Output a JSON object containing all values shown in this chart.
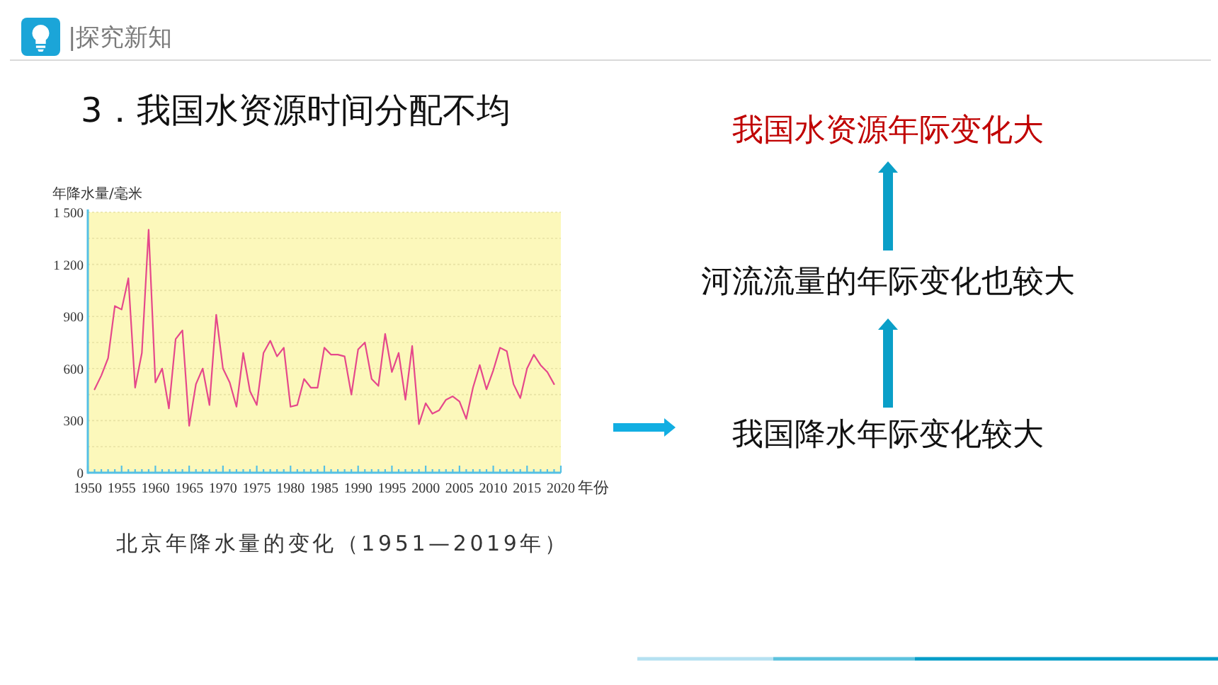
{
  "chart_data": [
    {
      "type": "line",
      "title": "北京年降水量的变化（1951—2019年）",
      "xlabel": "年份",
      "ylabel": "年降水量/毫米",
      "x": [
        1951,
        1952,
        1953,
        1954,
        1955,
        1956,
        1957,
        1958,
        1959,
        1960,
        1961,
        1962,
        1963,
        1964,
        1965,
        1966,
        1967,
        1968,
        1969,
        1970,
        1971,
        1972,
        1973,
        1974,
        1975,
        1976,
        1977,
        1978,
        1979,
        1980,
        1981,
        1982,
        1983,
        1984,
        1985,
        1986,
        1987,
        1988,
        1989,
        1990,
        1991,
        1992,
        1993,
        1994,
        1995,
        1996,
        1997,
        1998,
        1999,
        2000,
        2001,
        2002,
        2003,
        2004,
        2005,
        2006,
        2007,
        2008,
        2009,
        2010,
        2011,
        2012,
        2013,
        2014,
        2015,
        2016,
        2017,
        2018,
        2019
      ],
      "series": [
        {
          "color": "#e5488b",
          "values": [
            480,
            560,
            660,
            960,
            940,
            1120,
            490,
            690,
            1400,
            520,
            600,
            370,
            770,
            820,
            270,
            510,
            600,
            390,
            910,
            600,
            520,
            380,
            690,
            470,
            390,
            690,
            760,
            670,
            720,
            380,
            390,
            540,
            490,
            490,
            720,
            680,
            680,
            670,
            450,
            710,
            750,
            540,
            500,
            800,
            580,
            690,
            420,
            730,
            280,
            400,
            340,
            360,
            420,
            440,
            410,
            310,
            490,
            620,
            480,
            590,
            720,
            700,
            510,
            430,
            600,
            680,
            620,
            580,
            510
          ]
        }
      ],
      "xlim": [
        1950,
        2020
      ],
      "ylim": [
        0,
        1500
      ],
      "xticks": [
        1950,
        {
          "value": 1951,
          "label": null
        },
        {
          "value": 1952,
          "label": null
        },
        {
          "value": 1953,
          "label": null
        },
        {
          "value": 1954,
          "label": null
        },
        1955,
        {
          "value": 1956,
          "label": null
        },
        {
          "value": 1957,
          "label": null
        },
        {
          "value": 1958,
          "label": null
        },
        {
          "value": 1959,
          "label": null
        },
        1960,
        {
          "value": 1961,
          "label": null
        },
        {
          "value": 1962,
          "label": null
        },
        {
          "value": 1963,
          "label": null
        },
        {
          "value": 1964,
          "label": null
        },
        1965,
        {
          "value": 1966,
          "label": null
        },
        {
          "value": 1967,
          "label": null
        },
        {
          "value": 1968,
          "label": null
        },
        {
          "value": 1969,
          "label": null
        },
        1970,
        {
          "value": 1971,
          "label": null
        },
        {
          "value": 1972,
          "label": null
        },
        {
          "value": 1973,
          "label": null
        },
        {
          "value": 1974,
          "label": null
        },
        1975,
        {
          "value": 1976,
          "label": null
        },
        {
          "value": 1977,
          "label": null
        },
        {
          "value": 1978,
          "label": null
        },
        {
          "value": 1979,
          "label": null
        },
        1980,
        {
          "value": 1981,
          "label": null
        },
        {
          "value": 1982,
          "label": null
        },
        {
          "value": 1983,
          "label": null
        },
        {
          "value": 1984,
          "label": null
        },
        1985,
        {
          "value": 1986,
          "label": null
        },
        {
          "value": 1987,
          "label": null
        },
        {
          "value": 1988,
          "label": null
        },
        {
          "value": 1989,
          "label": null
        },
        1990,
        {
          "value": 1991,
          "label": null
        },
        {
          "value": 1992,
          "label": null
        },
        {
          "value": 1993,
          "label": null
        },
        {
          "value": 1994,
          "label": null
        },
        1995,
        {
          "value": 1996,
          "label": null
        },
        {
          "value": 1997,
          "label": null
        },
        {
          "value": 1998,
          "label": null
        },
        {
          "value": 1999,
          "label": null
        },
        2000,
        {
          "value": 2001,
          "label": null
        },
        {
          "value": 2002,
          "label": null
        },
        {
          "value": 2003,
          "label": null
        },
        {
          "value": 2004,
          "label": null
        },
        2005,
        {
          "value": 2006,
          "label": null
        },
        {
          "value": 2007,
          "label": null
        },
        {
          "value": 2008,
          "label": null
        },
        {
          "value": 2009,
          "label": null
        },
        2010,
        {
          "value": 2011,
          "label": null
        },
        {
          "value": 2012,
          "label": null
        },
        {
          "value": 2013,
          "label": null
        },
        {
          "value": 2014,
          "label": null
        },
        2015,
        {
          "value": 2016,
          "label": null
        },
        {
          "value": 2017,
          "label": null
        },
        {
          "value": 2018,
          "label": null
        },
        {
          "value": 2019,
          "label": null
        },
        2020
      ],
      "yticks": [
        0,
        {
          "value": 150,
          "label": null
        },
        300,
        {
          "value": 450,
          "label": null
        },
        600,
        {
          "value": 750,
          "label": null
        },
        900,
        {
          "value": 1050,
          "label": null
        },
        {
          "value": 1200,
          "label": "1 200"
        },
        {
          "value": 1350,
          "label": null
        },
        {
          "value": 1500,
          "label": "1 500"
        }
      ],
      "grid": "y",
      "annotations": [
        "|探究新知",
        "3．我国水资源时间分配不均"
      ]
    },
    {
      "type": "other",
      "annotations": [
        "我国水资源年际变化大",
        "河流流量的年际变化也较大",
        "我国降水年际变化较大"
      ]
    }
  ]
}
